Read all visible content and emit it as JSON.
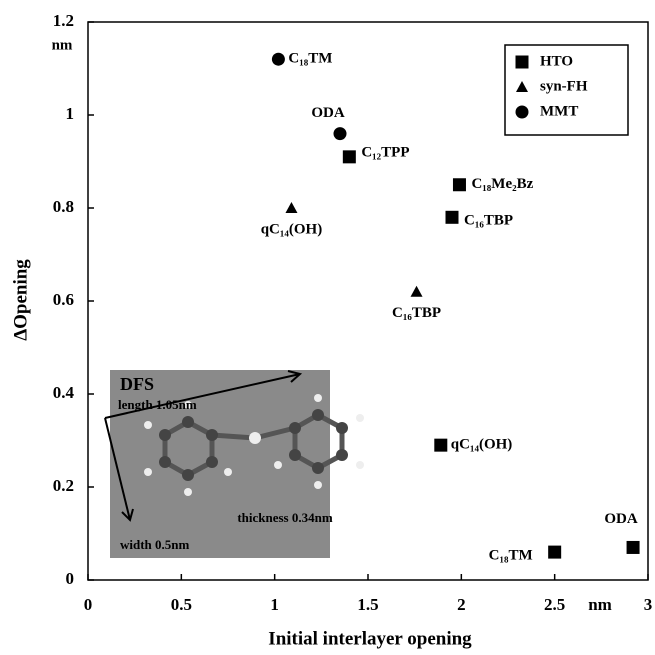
{
  "chart_data": {
    "type": "scatter",
    "x_label": "Initial interlayer opening",
    "y_label": "ΔOpening",
    "x_unit": "nm",
    "y_unit": "nm",
    "xlim": [
      0,
      3
    ],
    "ylim": [
      0,
      1.2
    ],
    "xticks": [
      0,
      0.5,
      1,
      1.5,
      2,
      2.5,
      3
    ],
    "yticks": [
      0,
      0.2,
      0.4,
      0.6,
      0.8,
      1,
      1.2
    ],
    "legend": "upper right",
    "series": [
      {
        "name": "HTO",
        "marker": "square",
        "color": "#000000",
        "x": [
          1.4,
          1.99,
          1.95,
          1.89,
          2.5,
          2.92
        ],
        "values": [
          0.91,
          0.85,
          0.78,
          0.29,
          0.06,
          0.07
        ],
        "labels": [
          "C₁₂TPP",
          "C₁₈Me₂Bz",
          "C₁₆TBP",
          "qC₁₄(OH)",
          "C₁₈TM",
          "ODA"
        ]
      },
      {
        "name": "syn-FH",
        "marker": "triangle",
        "color": "#000000",
        "x": [
          1.09,
          1.76
        ],
        "values": [
          0.8,
          0.62
        ],
        "labels": [
          "qC₁₄(OH)",
          "C₁₆TBP"
        ]
      },
      {
        "name": "MMT",
        "marker": "circle",
        "color": "#000000",
        "x": [
          1.02,
          1.35
        ],
        "values": [
          1.12,
          0.96
        ],
        "labels": [
          "C₁₈TM",
          "ODA"
        ]
      }
    ],
    "inset": {
      "title": "DFS",
      "length": "length 1.05nm",
      "width": "width 0.5nm",
      "thickness": "thickness 0.34nm"
    }
  }
}
